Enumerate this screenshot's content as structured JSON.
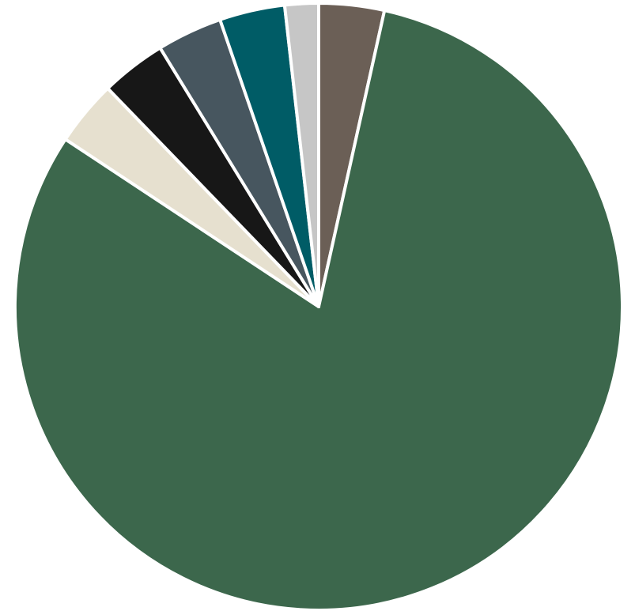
{
  "chart_data": {
    "type": "pie",
    "title": "",
    "start_angle_deg": 0,
    "direction": "clockwise",
    "slices": [
      {
        "value": 3.3,
        "color": "#6b5f56"
      },
      {
        "value": 76.7,
        "color": "#3c674c"
      },
      {
        "value": 3.3,
        "color": "#e6e0cf"
      },
      {
        "value": 3.3,
        "color": "#171717"
      },
      {
        "value": 3.3,
        "color": "#47565f"
      },
      {
        "value": 3.3,
        "color": "#005c66"
      },
      {
        "value": 1.7,
        "color": "#c6c6c6"
      }
    ]
  }
}
